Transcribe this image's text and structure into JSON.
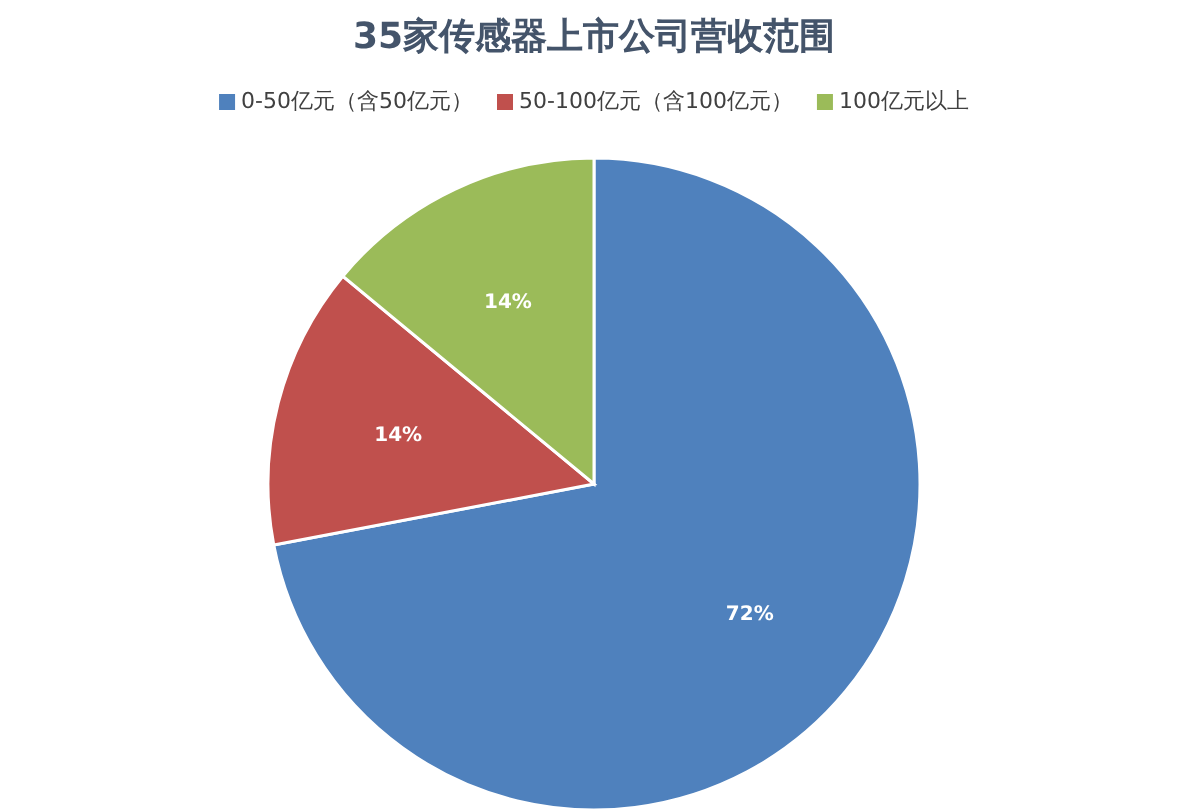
{
  "chart_data": {
    "type": "pie",
    "title": "35家传感器上市公司营收范围",
    "categories": [
      "0-50亿元（含50亿元）",
      "50-100亿元（含100亿元）",
      "100亿元以上"
    ],
    "values": [
      72,
      14,
      14
    ],
    "colors": [
      "#4f81bd",
      "#c0504d",
      "#9bbb59"
    ],
    "value_labels": [
      "72%",
      "14%",
      "14%"
    ],
    "legend": "top"
  }
}
